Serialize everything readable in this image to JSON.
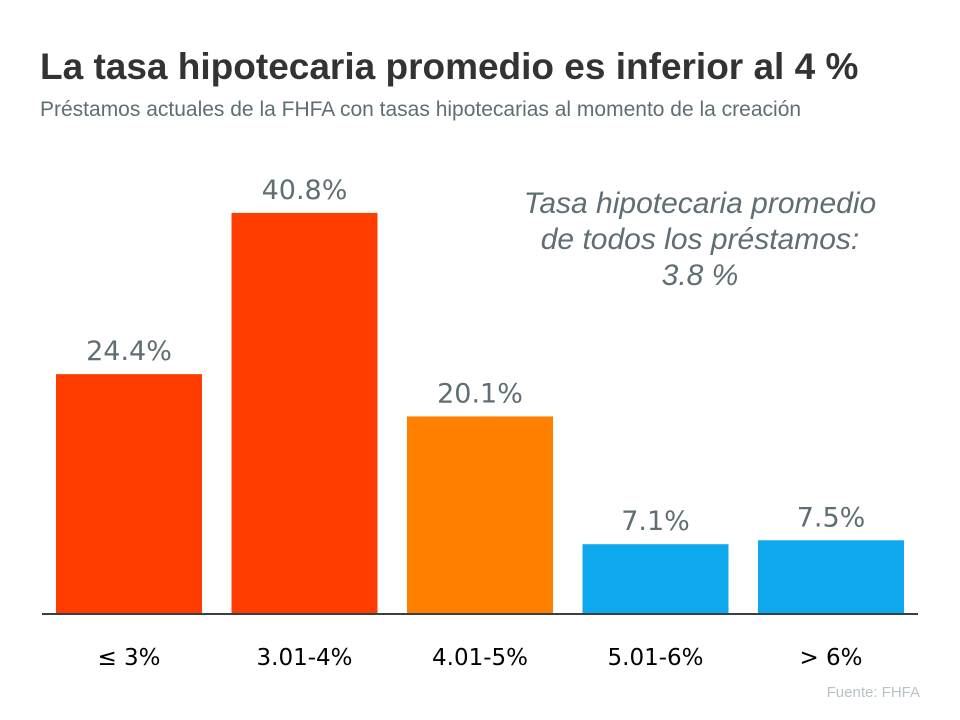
{
  "chart_data": {
    "type": "bar",
    "title": "La tasa hipotecaria promedio es inferior al 4 %",
    "subtitle": "Préstamos actuales de la FHFA con tasas hipotecarias al momento de la creación",
    "categories": [
      "≤ 3%",
      "3.01-4%",
      "4.01-5%",
      "5.01-6%",
      "> 6%"
    ],
    "values": [
      24.4,
      40.8,
      20.1,
      7.1,
      7.5
    ],
    "value_labels": [
      "24.4%",
      "40.8%",
      "20.1%",
      "7.1%",
      "7.5%"
    ],
    "colors": [
      "#FF3D00",
      "#FF3D00",
      "#FF8000",
      "#0DA9EC",
      "#0DA9EC"
    ],
    "ylim": [
      0,
      45
    ],
    "grid": false,
    "annotation": [
      "Tasa hipotecaria promedio",
      "de todos los préstamos:",
      "3.8 %"
    ],
    "source": "Fuente:  FHFA"
  }
}
